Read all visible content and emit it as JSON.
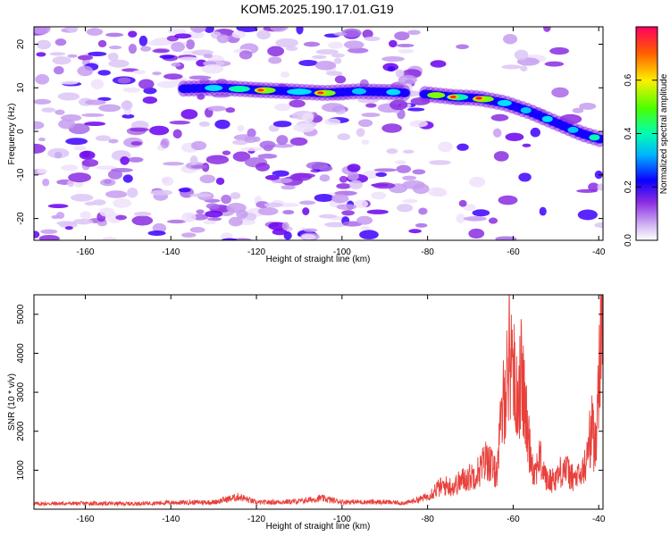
{
  "chart_data": [
    {
      "type": "heatmap",
      "title": "KOM5.2025.190.17.01.G19",
      "xlabel": "Height of straight line (km)",
      "ylabel": "Frequency (Hz)",
      "xlim": [
        -172,
        -39
      ],
      "ylim": [
        -25,
        24
      ],
      "xticks": [
        -160,
        -140,
        -120,
        -100,
        -80,
        -60,
        -40
      ],
      "yticks": [
        -20,
        -10,
        0,
        10,
        20
      ],
      "grid": false,
      "colorbar": {
        "label": "Normalized spectral amplitude",
        "range": [
          0,
          0.8
        ],
        "ticks": [
          "0.0",
          "0.2",
          "0.4",
          "0.6"
        ]
      },
      "ridge": {
        "x": [
          -137,
          -128,
          -120,
          -112,
          -104,
          -96,
          -88,
          -80,
          -74,
          -68,
          -62,
          -56,
          -50,
          -44,
          -39
        ],
        "frequency": [
          9.8,
          10,
          9.5,
          9.2,
          8.8,
          9.2,
          9,
          8.5,
          7.9,
          7.6,
          6.5,
          4.5,
          2,
          -0.5,
          -2
        ]
      }
    },
    {
      "type": "line",
      "title": "",
      "xlabel": "Height of straight line (km)",
      "ylabel": "SNR (10 * v/v)",
      "xlim": [
        -172,
        -39
      ],
      "ylim": [
        0,
        5500
      ],
      "xticks": [
        -160,
        -140,
        -120,
        -100,
        -80,
        -60,
        -40
      ],
      "yticks": [
        1000,
        2000,
        3000,
        4000,
        5000
      ],
      "grid": false,
      "series": [
        {
          "color": "#e8413c",
          "x": [
            -172,
            -160,
            -150,
            -140,
            -130,
            -124,
            -120,
            -110,
            -105,
            -100,
            -90,
            -85,
            -80,
            -78,
            -76,
            -74,
            -72,
            -70,
            -68,
            -66,
            -64,
            -62,
            -61,
            -60,
            -59.5,
            -58,
            -57,
            -56,
            -55,
            -54,
            -52,
            -50,
            -48,
            -46,
            -44,
            -43,
            -42,
            -41.5,
            -41,
            -40.5,
            -40,
            -39.5,
            -39
          ],
          "values": [
            140,
            150,
            140,
            170,
            180,
            320,
            170,
            200,
            280,
            190,
            180,
            160,
            320,
            520,
            600,
            580,
            740,
            830,
            980,
            1320,
            880,
            3000,
            3900,
            4150,
            2700,
            3480,
            2300,
            1500,
            900,
            1350,
            700,
            820,
            1080,
            780,
            870,
            1180,
            1850,
            2200,
            1500,
            2300,
            3700,
            4600,
            5400
          ]
        }
      ]
    }
  ]
}
